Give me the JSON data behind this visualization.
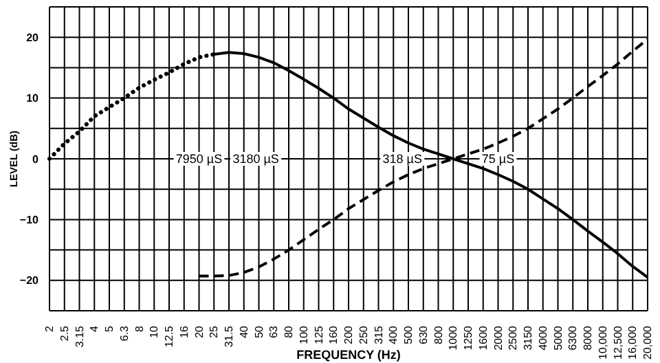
{
  "chart_data": {
    "type": "line",
    "xlabel": "FREQUENCY (Hz)",
    "ylabel": "LEVEL (dB)",
    "categories": [
      "2",
      "2.5",
      "3.15",
      "4",
      "5",
      "6.3",
      "8",
      "10",
      "12.5",
      "16",
      "20",
      "25",
      "31.5",
      "40",
      "50",
      "63",
      "80",
      "100",
      "125",
      "160",
      "200",
      "250",
      "315",
      "400",
      "500",
      "630",
      "800",
      "1000",
      "1250",
      "1600",
      "2000",
      "2500",
      "3150",
      "4000",
      "5000",
      "6300",
      "8000",
      "10,000",
      "12,500",
      "16,000",
      "20,000"
    ],
    "series": [
      {
        "color": "#000000",
        "line_style": "dotted",
        "values": [
          0,
          2.5,
          4.5,
          7,
          8.5,
          10,
          11.7,
          13,
          14.2,
          15.6,
          16.7,
          17.2,
          null,
          null,
          null,
          null,
          null,
          null,
          null,
          null,
          null,
          null,
          null,
          null,
          null,
          null,
          null,
          null,
          null,
          null,
          null,
          null,
          null,
          null,
          null,
          null,
          null,
          null,
          null,
          null,
          null
        ]
      },
      {
        "color": "#000000",
        "line_style": "solid",
        "values": [
          null,
          null,
          null,
          null,
          null,
          null,
          null,
          null,
          null,
          null,
          null,
          17.2,
          17.5,
          17.3,
          16.7,
          15.8,
          14.5,
          13.1,
          11.6,
          10,
          8.2,
          6.7,
          5.2,
          3.8,
          2.6,
          1.6,
          0.8,
          0,
          -0.8,
          -1.6,
          -2.6,
          -3.7,
          -5,
          -6.6,
          -8.2,
          -10,
          -11.9,
          -13.7,
          -15.6,
          -17.7,
          -19.5
        ]
      },
      {
        "color": "#000000",
        "line_style": "dashed",
        "values": [
          null,
          null,
          null,
          null,
          null,
          null,
          null,
          null,
          null,
          null,
          -19.3,
          -19.3,
          -19.2,
          -18.7,
          -17.8,
          -16.5,
          -15,
          -13.3,
          -11.6,
          -10,
          -8.2,
          -6.7,
          -5.2,
          -3.8,
          -2.6,
          -1.6,
          -0.8,
          0,
          0.8,
          1.6,
          2.6,
          3.7,
          5,
          6.6,
          8.2,
          10,
          11.9,
          13.7,
          15.6,
          17.7,
          19.7
        ]
      }
    ],
    "ylim": [
      -25,
      25
    ],
    "yticks": [
      {
        "value": -25,
        "label": null
      },
      -20,
      {
        "value": -15,
        "label": null
      },
      -10,
      {
        "value": -5,
        "label": null
      },
      0,
      {
        "value": 5,
        "label": null
      },
      10,
      {
        "value": 15,
        "label": null
      },
      20,
      {
        "value": 25,
        "label": null
      }
    ],
    "grid": true,
    "annotations": [
      "7950 µS",
      "3180 µS",
      "318 µS",
      "75 µS"
    ]
  }
}
